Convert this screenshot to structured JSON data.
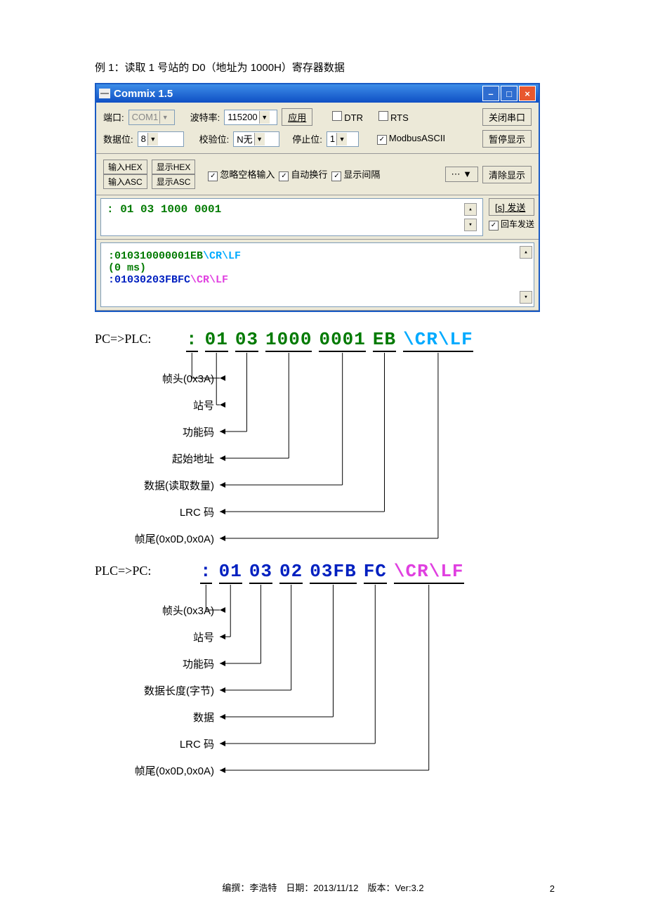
{
  "title": "例 1：读取 1 号站的 D0（地址为 1000H）寄存器数据",
  "window": {
    "title": "Commix 1.5",
    "row1": {
      "port_label": "端口:",
      "port_value": "COM1",
      "baud_label": "波特率:",
      "baud_value": "115200",
      "apply": "应用",
      "dtr": "DTR",
      "rts": "RTS",
      "close_port": "关闭串口"
    },
    "row2": {
      "databits_label": "数据位:",
      "databits_value": "8",
      "parity_label": "校验位:",
      "parity_value": "N无",
      "stopbits_label": "停止位:",
      "stopbits_value": "1",
      "modbus": "ModbusASCII",
      "pause": "暂停显示"
    },
    "row3": {
      "in_hex": "输入HEX",
      "show_hex": "显示HEX",
      "in_asc": "输入ASC",
      "show_asc": "显示ASC",
      "ignore_space": "忽略空格输入",
      "auto_wrap": "自动换行",
      "show_gap": "显示间隔",
      "more": "⋯",
      "clear": "清除显示"
    },
    "input": ": 01 03 1000 0001",
    "send": "[s] 发送",
    "enter_send": "回车发送",
    "output": {
      "line1_a": ":010310000001EB",
      "line1_b": "\\CR\\LF",
      "line2": "(0 ms)",
      "line3_a": ":01030203FBFC",
      "line3_b": "\\CR\\LF"
    }
  },
  "diagram1": {
    "direction": "PC=>PLC:",
    "segments": [
      {
        "text": ":",
        "color": "#007a00"
      },
      {
        "text": "01",
        "color": "#007a00"
      },
      {
        "text": "03",
        "color": "#007a00"
      },
      {
        "text": "1000",
        "color": "#007a00"
      },
      {
        "text": "0001",
        "color": "#007a00"
      },
      {
        "text": "EB",
        "color": "#007a00"
      },
      {
        "text": "\\CR\\LF",
        "color": "#00aaff"
      }
    ],
    "fields": [
      "帧头(0x3A)",
      "站号",
      "功能码",
      "起始地址",
      "数据(读取数量)",
      "LRC 码",
      "帧尾(0x0D,0x0A)"
    ]
  },
  "diagram2": {
    "direction": "PLC=>PC:",
    "segments": [
      {
        "text": ":",
        "color": "#0020c0"
      },
      {
        "text": "01",
        "color": "#0020c0"
      },
      {
        "text": "03",
        "color": "#0020c0"
      },
      {
        "text": "02",
        "color": "#0020c0"
      },
      {
        "text": "03FB",
        "color": "#0020c0"
      },
      {
        "text": "FC",
        "color": "#0020c0"
      },
      {
        "text": "\\CR\\LF",
        "color": "#e040e0"
      }
    ],
    "fields": [
      "帧头(0x3A)",
      "站号",
      "功能码",
      "数据长度(字节)",
      "数据",
      "LRC 码",
      "帧尾(0x0D,0x0A)"
    ]
  },
  "footer": "编撰：李浩特　日期：2013/11/12　版本：Ver:3.2",
  "page_number": "2"
}
